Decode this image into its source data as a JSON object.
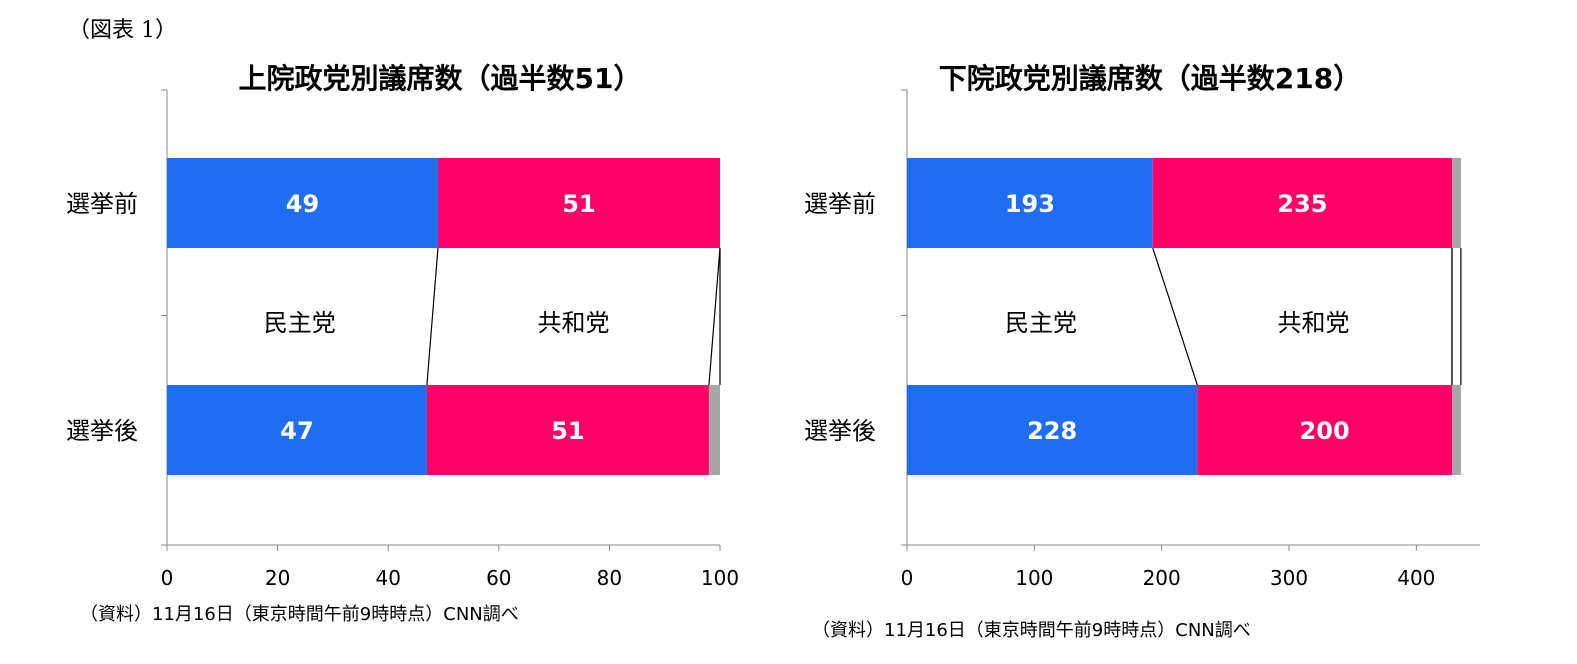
{
  "figure_label": "（図表 1）",
  "colors": {
    "dem": "#1f6ef2",
    "rep": "#ff0066",
    "other": "#a6a6a6"
  },
  "chart_data": [
    {
      "type": "bar",
      "orientation": "horizontal",
      "stacked": true,
      "title": "上院政党別議席数（過半数51）",
      "categories": [
        "選挙前",
        "選挙後"
      ],
      "series": [
        {
          "name": "民主党",
          "values": [
            49,
            47
          ]
        },
        {
          "name": "共和党",
          "values": [
            51,
            51
          ]
        },
        {
          "values": [
            0,
            2
          ]
        }
      ],
      "xlim": [
        0,
        100
      ],
      "xticks": [
        0,
        20,
        40,
        60,
        80,
        100
      ],
      "xtick_labels": [
        "0",
        "20",
        "40",
        "60",
        "80",
        "100"
      ],
      "source": "（資料）11月16日（東京時間午前9時時点）CNN調べ"
    },
    {
      "type": "bar",
      "orientation": "horizontal",
      "stacked": true,
      "title": "下院政党別議席数（過半数218）",
      "categories": [
        "選挙前",
        "選挙後"
      ],
      "series": [
        {
          "name": "民主党",
          "values": [
            193,
            228
          ]
        },
        {
          "name": "共和党",
          "values": [
            235,
            200
          ]
        },
        {
          "values": [
            7,
            7
          ]
        }
      ],
      "xlim": [
        0,
        450
      ],
      "xticks": [
        0,
        100,
        200,
        300,
        400
      ],
      "xtick_labels": [
        "0",
        "100",
        "200",
        "300",
        "400"
      ],
      "source": "（資料）11月16日（東京時間午前9時時点）CNN調べ"
    }
  ]
}
